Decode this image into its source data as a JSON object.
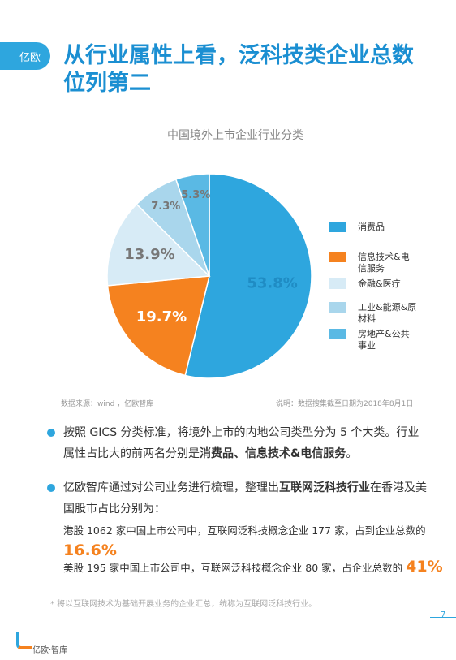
{
  "header": {
    "logo_text": "亿欧",
    "title": "从行业属性上看，泛科技类企业总数位列第二"
  },
  "chart_data": {
    "type": "pie",
    "title": "中国境外上市企业行业分类",
    "categories": [
      "消费品",
      "信息技术&电信服务",
      "金融&医疗",
      "工业&能源&原材料",
      "房地产&公共事业"
    ],
    "values": [
      53.8,
      19.7,
      13.9,
      7.3,
      5.3
    ],
    "value_labels": [
      "53.8%",
      "19.7%",
      "13.9%",
      "7.3%",
      "5.3%"
    ],
    "colors": [
      "#2ea6de",
      "#f5821f",
      "#d7ebf6",
      "#a9d6ec",
      "#5ab9e4"
    ],
    "legend": "right"
  },
  "source": "数据来源：wind ，亿欧智库",
  "note": "说明：数据搜集截至日期为2018年8月1日",
  "bullets": [
    {
      "parts": [
        {
          "text": "按照 GICS 分类标准，将境外上市的内地公司类型分为 5 个大类。行业属性占比大的前两名分别是",
          "bold": false
        },
        {
          "text": "消费品、信息技术&电信服务",
          "bold": true
        },
        {
          "text": "。",
          "bold": false
        }
      ]
    },
    {
      "parts": [
        {
          "text": "亿欧智库通过对公司业务进行梳理，整理出",
          "bold": false
        },
        {
          "text": "互联网泛科技行业",
          "bold": true
        },
        {
          "text": "在香港及美国股市占比分别为：",
          "bold": false
        }
      ]
    }
  ],
  "details": [
    {
      "text": "港股 1062 家中国上市公司中，互联网泛科技概念企业 177 家，占到企业总数的",
      "highlight": "16.6%"
    },
    {
      "text": "美股 195 家中国上市公司中，互联网泛科技概念企业 80 家，占企业总数的",
      "highlight": "41%"
    }
  ],
  "footnote": "* 将以互联网技术为基础开展业务的企业汇总，统称为互联网泛科技行业。",
  "page_number": "7",
  "footer_logo": "亿欧·智库"
}
